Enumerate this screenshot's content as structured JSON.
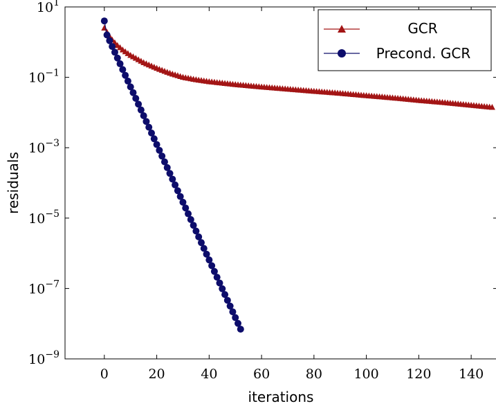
{
  "chart_data": {
    "type": "line",
    "xlabel": "iterations",
    "ylabel": "residuals",
    "xlim": [
      -15,
      150
    ],
    "ylim_log10": [
      -9,
      1
    ],
    "y_scale": "log",
    "x_ticks": [
      0,
      20,
      40,
      60,
      80,
      100,
      120,
      140
    ],
    "y_ticks": [
      {
        "base": "10",
        "exp": "1",
        "value": 10
      },
      {
        "base": "10",
        "exp": "−1",
        "value": 0.1
      },
      {
        "base": "10",
        "exp": "−3",
        "value": 0.001
      },
      {
        "base": "10",
        "exp": "−5",
        "value": 1e-05
      },
      {
        "base": "10",
        "exp": "−7",
        "value": 1e-07
      },
      {
        "base": "10",
        "exp": "−9",
        "value": 1e-09
      }
    ],
    "grid": false,
    "legend_position": "top-right",
    "series": [
      {
        "name": "GCR",
        "marker": "triangle",
        "color": "#a31515",
        "points": [
          [
            0,
            2.5
          ],
          [
            1,
            1.9
          ],
          [
            2,
            1.45
          ],
          [
            3,
            1.15
          ],
          [
            4,
            0.95
          ],
          [
            5,
            0.8
          ],
          [
            7,
            0.6
          ],
          [
            10,
            0.42
          ],
          [
            15,
            0.26
          ],
          [
            20,
            0.18
          ],
          [
            25,
            0.13
          ],
          [
            30,
            0.1
          ],
          [
            35,
            0.085
          ],
          [
            40,
            0.075
          ],
          [
            50,
            0.062
          ],
          [
            60,
            0.053
          ],
          [
            70,
            0.046
          ],
          [
            80,
            0.04
          ],
          [
            90,
            0.035
          ],
          [
            100,
            0.03
          ],
          [
            110,
            0.026
          ],
          [
            120,
            0.022
          ],
          [
            130,
            0.019
          ],
          [
            140,
            0.016
          ],
          [
            148,
            0.014
          ]
        ]
      },
      {
        "name": "Precond. GCR",
        "marker": "circle",
        "color": "#0d0d6b",
        "points": [
          [
            0,
            4
          ],
          [
            1,
            1.6
          ],
          [
            52,
            7e-09
          ]
        ]
      }
    ]
  }
}
